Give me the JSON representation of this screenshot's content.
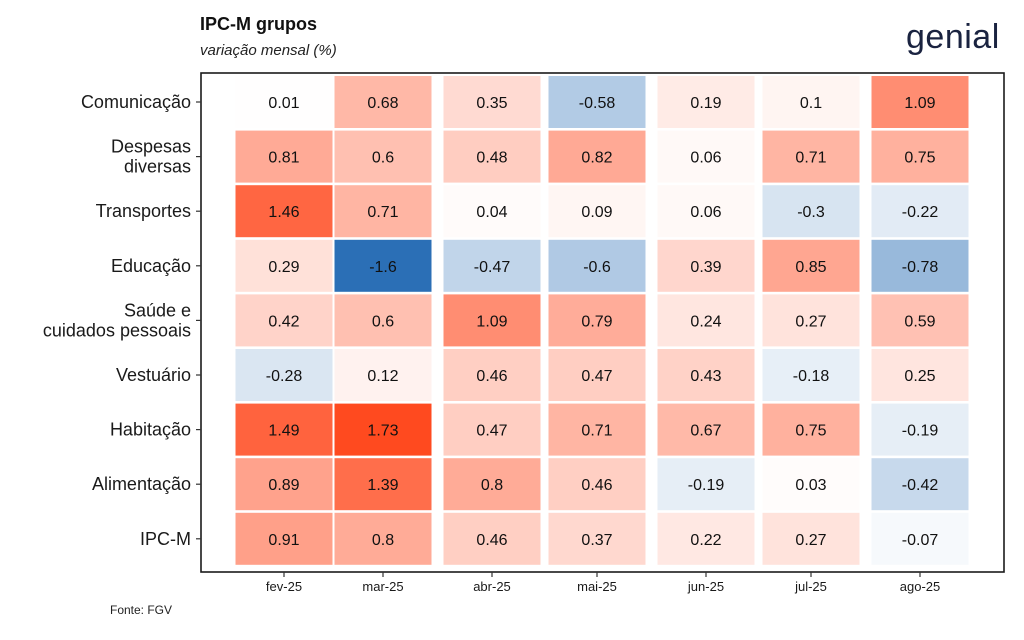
{
  "title": "IPC-M grupos",
  "subtitle": "variação mensal (%)",
  "logo": "genial",
  "source": "Fonte: FGV",
  "colors": {
    "positive_max": "#ff4a1f",
    "negative_max": "#2b6fb6",
    "neutral": "#ffffff",
    "frame": "#1a1a1a"
  },
  "chart_data": {
    "type": "heatmap",
    "title": "IPC-M grupos",
    "subtitle": "variação mensal (%)",
    "x": [
      "fev-25",
      "mar-25",
      "abr-25",
      "mai-25",
      "jun-25",
      "jul-25",
      "ago-25"
    ],
    "y": [
      [
        "Comunicação"
      ],
      [
        "Despesas",
        "diversas"
      ],
      [
        "Transportes"
      ],
      [
        "Educação"
      ],
      [
        "Saúde e",
        "cuidados pessoais"
      ],
      [
        "Vestuário"
      ],
      [
        "Habitação"
      ],
      [
        "Alimentação"
      ],
      [
        "IPC-M"
      ]
    ],
    "values": [
      [
        "0.01",
        "0.68",
        "0.35",
        "-0.58",
        "0.19",
        "0.1",
        "1.09"
      ],
      [
        "0.81",
        "0.6",
        "0.48",
        "0.82",
        "0.06",
        "0.71",
        "0.75"
      ],
      [
        "1.46",
        "0.71",
        "0.04",
        "0.09",
        "0.06",
        "-0.3",
        "-0.22"
      ],
      [
        "0.29",
        "-1.6",
        "-0.47",
        "-0.6",
        "0.39",
        "0.85",
        "-0.78"
      ],
      [
        "0.42",
        "0.6",
        "1.09",
        "0.79",
        "0.24",
        "0.27",
        "0.59"
      ],
      [
        "-0.28",
        "0.12",
        "0.46",
        "0.47",
        "0.43",
        "-0.18",
        "0.25"
      ],
      [
        "1.49",
        "1.73",
        "0.47",
        "0.71",
        "0.67",
        "0.75",
        "-0.19"
      ],
      [
        "0.89",
        "1.39",
        "0.8",
        "0.46",
        "-0.19",
        "0.03",
        "-0.42"
      ],
      [
        "0.91",
        "0.8",
        "0.46",
        "0.37",
        "0.22",
        "0.27",
        "-0.07"
      ]
    ],
    "color_scale": {
      "min": -1.6,
      "max": 1.73
    },
    "grid": false,
    "legend": "none"
  }
}
